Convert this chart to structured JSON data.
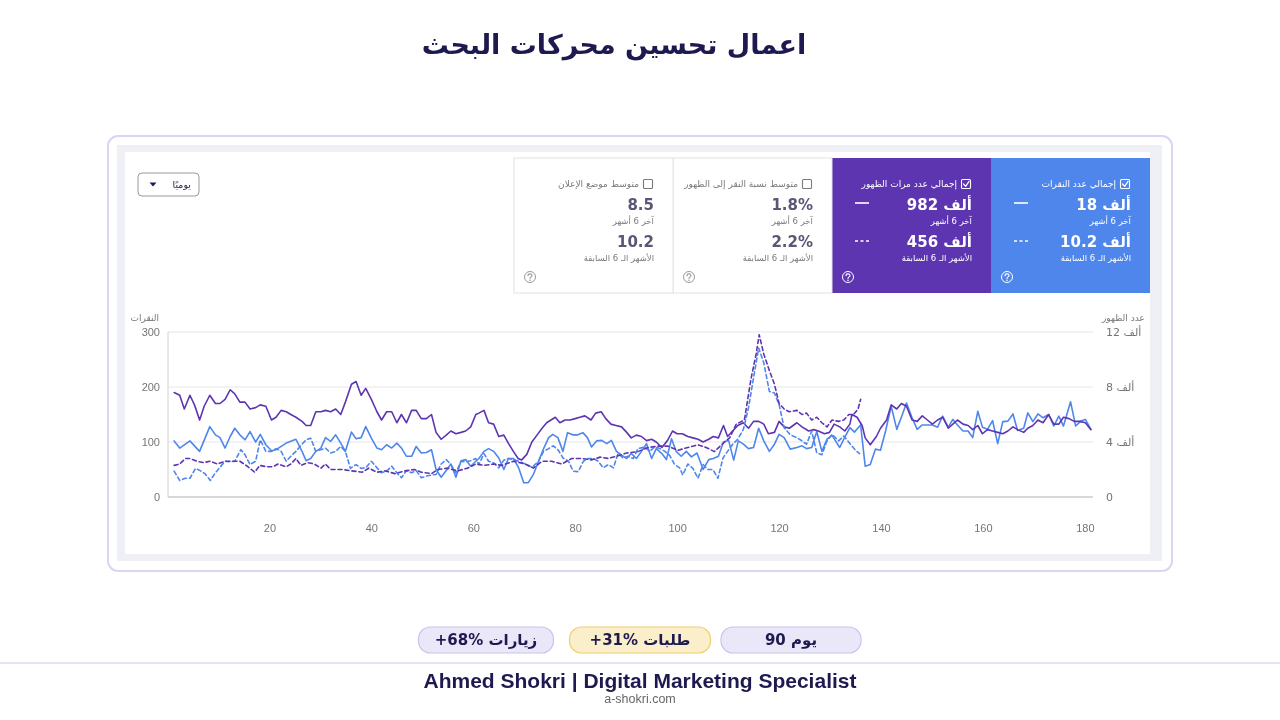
{
  "chart_data": {
    "type": "line",
    "title": "اعمال تحسين محركات البحث",
    "ylabel": "النقرات",
    "y2label": "عدد الظهور",
    "xlim": [
      0,
      181.5
    ],
    "xticks": [
      20,
      40,
      60,
      80,
      100,
      120,
      140,
      160,
      180
    ],
    "ylim": [
      0,
      300
    ],
    "yticks": [
      0,
      100,
      200,
      300
    ],
    "y2lim": [
      0,
      12
    ],
    "y2ticks": [
      0,
      {
        "value": 4,
        "label": "4 ألف"
      },
      {
        "value": 8,
        "label": "8 ألف"
      },
      {
        "value": 12,
        "label": "12 ألف"
      }
    ],
    "grid": "y",
    "series": [
      {
        "color": "#4f86ec",
        "line_style": "solid",
        "x": [
          1.2,
          2.3,
          4.3,
          6.2,
          8.2,
          9.3,
          10.2,
          11.2,
          12.2,
          13.1,
          14.1,
          15.1,
          16.1,
          17.2,
          18.1,
          19.2,
          20.3,
          21.2,
          23.2,
          25.1,
          26.3,
          27.1,
          28,
          29,
          30,
          30.9,
          31.9,
          32.9,
          33.9,
          34.8,
          36,
          36.9,
          37.9,
          38.8,
          39.9,
          41,
          41.9,
          42.9,
          43.9,
          44.9,
          45.8,
          46.8,
          47.8,
          48.7,
          49.7,
          50.7,
          51.7,
          52.6,
          53.6,
          54.6,
          55.5,
          56.5,
          57.5,
          58.4,
          59.4,
          60.4,
          61,
          62,
          62.9,
          63.9,
          64.9,
          65.9,
          66.8,
          67.8,
          68.8,
          69.8,
          70.7,
          71.7,
          72.7,
          73.7,
          74.7,
          75.5,
          76.5,
          77.5,
          78.4,
          79.4,
          80.4,
          81.4,
          82.3,
          83.1,
          84.1,
          85.1,
          86.1,
          87,
          88,
          89,
          90,
          90.9,
          91.9,
          92.9,
          93.9,
          94.9,
          95.8,
          96.9,
          97.8,
          98.8,
          99.7,
          100.7,
          101.7,
          102.7,
          103.8,
          105,
          106.1,
          107,
          108,
          109,
          110,
          111,
          111.9,
          112.9,
          113.9,
          114.9,
          115.9,
          116.9,
          118,
          119,
          119.9,
          120.9,
          122.1,
          123.4,
          124.4,
          125.3,
          126.3,
          127.3,
          128.3,
          129.3,
          130.3,
          131.8,
          132.8,
          133.8,
          134.7,
          135.9,
          136.8,
          137.8,
          138.8,
          139.8,
          140.8,
          141.9,
          143,
          143.9,
          144.9,
          146,
          147,
          148,
          149,
          150,
          151,
          152,
          153.1,
          154,
          154.9,
          156,
          157,
          157.9,
          158.9,
          159.8,
          160.8,
          161.8,
          162.8,
          163.8,
          164.8,
          165.8,
          166.7,
          167.9,
          168.7,
          169.7,
          170.7,
          171.7,
          172.8,
          173.8,
          174.8,
          175.7,
          177.1,
          178.1,
          179.1,
          180,
          181.1
        ],
        "values": [
          102,
          89,
          102,
          83,
          128,
          113,
          108,
          89,
          110,
          125,
          113,
          104,
          119,
          100,
          114,
          95,
          84,
          86,
          98,
          105,
          83,
          66,
          70,
          83,
          89,
          108,
          101,
          113,
          98,
          83,
          118,
          106,
          108,
          128,
          107,
          89,
          86,
          95,
          89,
          98,
          89,
          74,
          74,
          92,
          80,
          81,
          86,
          50,
          36,
          48,
          60,
          36,
          66,
          68,
          56,
          65,
          70,
          83,
          88,
          83,
          71,
          50,
          70,
          70,
          53,
          26,
          26,
          41,
          65,
          88,
          108,
          114,
          108,
          83,
          117,
          113,
          113,
          117,
          108,
          91,
          102,
          103,
          97,
          103,
          83,
          76,
          70,
          79,
          70,
          83,
          97,
          70,
          88,
          79,
          68,
          106,
          83,
          74,
          83,
          73,
          80,
          50,
          68,
          70,
          74,
          100,
          103,
          67,
          102,
          96,
          88,
          90,
          125,
          102,
          83,
          96,
          114,
          108,
          87,
          90,
          93,
          88,
          90,
          119,
          83,
          105,
          112,
          90,
          109,
          126,
          118,
          131,
          56,
          59,
          87,
          85,
          120,
          165,
          123,
          145,
          171,
          144,
          123,
          131,
          131,
          131,
          127,
          147,
          127,
          141,
          131,
          120,
          120,
          108,
          156,
          127,
          123,
          139,
          97,
          137,
          138,
          151,
          121,
          125,
          153,
          137,
          151,
          144,
          150,
          129,
          147,
          129,
          173,
          129,
          138,
          141,
          123
        ]
      },
      {
        "color": "#5e35b1",
        "line_style": "solid",
        "axis": "y2",
        "x": [
          1.2,
          2.3,
          3.2,
          4.3,
          5.2,
          6.2,
          7.1,
          8.2,
          9.3,
          10.2,
          11.2,
          12.2,
          13.1,
          14.1,
          15.1,
          16.1,
          17.2,
          18.1,
          19.2,
          20.3,
          21.2,
          22.2,
          23.2,
          24.1,
          25.1,
          26.3,
          27.1,
          28,
          29,
          30,
          30.9,
          31.9,
          32.9,
          33.9,
          34.8,
          36,
          36.9,
          37.9,
          38.8,
          39.9,
          41,
          41.9,
          42.9,
          43.9,
          44.9,
          45.8,
          46.8,
          47.8,
          48.7,
          49.7,
          50.7,
          51.7,
          52.6,
          53.6,
          54.6,
          55.5,
          56.5,
          57.5,
          58.4,
          59.4,
          60.4,
          61,
          62,
          62.9,
          63.9,
          64.9,
          65.9,
          66.8,
          67.8,
          68.7,
          69.4,
          70.4,
          71.4,
          72.4,
          73.4,
          74.3,
          76,
          76.9,
          77.9,
          78.9,
          79.9,
          80.8,
          81.8,
          83,
          83.9,
          85,
          85.9,
          86.9,
          87.9,
          89,
          90,
          90.9,
          91.9,
          92.9,
          93.9,
          94.9,
          95.8,
          96.9,
          98,
          99,
          99.9,
          100.9,
          102,
          103,
          104,
          105,
          106.1,
          107,
          108,
          109,
          109.8,
          110.8,
          111.8,
          112.9,
          113.9,
          114.9,
          115.9,
          116.9,
          117.8,
          119,
          119.9,
          120.9,
          121.9,
          123.4,
          124.4,
          125.7,
          126.7,
          127.6,
          128.8,
          129.8,
          130.7,
          131.8,
          132.8,
          133.8,
          134.2,
          135.2,
          136.2,
          136.8,
          137.8,
          139,
          139.8,
          141,
          141.9,
          143,
          143.9,
          144.9,
          146,
          147,
          148,
          149,
          150,
          151,
          152,
          153.1,
          154,
          154.9,
          156,
          157,
          157.9,
          158.9,
          159.8,
          160.8,
          161.8,
          162.8,
          163.8,
          164.8,
          165.8,
          166.7,
          167.9,
          168.7,
          169.7,
          170.7,
          171.7,
          172.8,
          173.8,
          174.8,
          175.7,
          176.8,
          177.8,
          178.9,
          180,
          181.1
        ],
        "values": [
          7.6,
          7.4,
          6.4,
          7.4,
          6.7,
          5.6,
          6.6,
          7.4,
          6.8,
          6.8,
          7.1,
          7.8,
          7.5,
          6.9,
          6.9,
          6.4,
          6.5,
          6.7,
          6.6,
          5.6,
          5.8,
          6.3,
          6.2,
          6.0,
          5.8,
          5.5,
          5.2,
          5.2,
          6.2,
          6.2,
          6.3,
          6.2,
          6.4,
          6.0,
          6.9,
          8.2,
          8.4,
          7.4,
          7.9,
          7.1,
          6.2,
          5.6,
          6.2,
          6.2,
          5.4,
          6.0,
          5.4,
          6.3,
          6.3,
          5.7,
          5.7,
          6.0,
          4.7,
          4.2,
          4.5,
          4.8,
          4.6,
          4.7,
          4.8,
          5.1,
          6.0,
          6.1,
          6.3,
          5.4,
          5.3,
          4.4,
          4.5,
          3.9,
          3.3,
          2.8,
          2.7,
          3.1,
          4.0,
          4.5,
          5.0,
          5.4,
          5.8,
          5.4,
          5.6,
          5.6,
          5.7,
          5.8,
          5.9,
          5.6,
          6.1,
          6.2,
          5.7,
          5.3,
          5.2,
          5.1,
          4.7,
          4.3,
          4.5,
          4.4,
          4.1,
          4.2,
          4.0,
          3.6,
          4.1,
          4.8,
          4.6,
          4.6,
          4.4,
          4.3,
          4.2,
          4.0,
          4.2,
          4.4,
          4.3,
          5.2,
          4.4,
          4.8,
          5.2,
          5.4,
          5.0,
          5.5,
          5.5,
          5.3,
          4.6,
          4.7,
          5.5,
          5.1,
          5.0,
          5.4,
          5.1,
          4.8,
          4.9,
          4.8,
          4.6,
          4.7,
          5.3,
          5.1,
          4.8,
          5.3,
          6.0,
          5.8,
          5.2,
          4.3,
          3.8,
          4.4,
          5.0,
          5.6,
          6.7,
          6.4,
          6.8,
          6.6,
          5.6,
          5.5,
          5.9,
          5.6,
          5.3,
          5.6,
          5.8,
          5.0,
          5.3,
          5.6,
          5.3,
          5.2,
          4.9,
          5.2,
          4.6,
          4.9,
          4.8,
          4.7,
          4.6,
          4.8,
          5.1,
          4.9,
          4.7,
          5.0,
          5.2,
          5.6,
          5.4,
          6.0,
          5.3,
          5.3,
          5.8,
          5.7,
          5.5,
          5.5,
          5.4,
          4.9
        ]
      },
      {
        "color": "#4f86ec",
        "line_style": "dashed",
        "x": [
          1.2,
          2.3,
          3.4,
          4.3,
          5.4,
          6.3,
          7.3,
          8.3,
          9.3,
          10.2,
          11.2,
          12.2,
          13.1,
          14.3,
          15.1,
          16.1,
          17.2,
          18.1,
          19.2,
          20.3,
          21.2,
          22.2,
          23.2,
          24.1,
          25.1,
          26.3,
          27.1,
          28,
          29,
          30,
          30.9,
          31.9,
          32.9,
          33.9,
          34.8,
          35.8,
          36.9,
          37.9,
          38.8,
          39.9,
          41,
          41.9,
          42.9,
          43.9,
          44.9,
          45.8,
          46.8,
          47.8,
          48.7,
          49.7,
          50.7,
          51.7,
          52.6,
          53.6,
          54.6,
          55.5,
          56.5,
          57.5,
          58.4,
          59.4,
          60.4,
          61,
          62,
          62.9,
          63.9,
          64.9,
          65.9,
          66.8,
          67.8,
          68.8,
          70.1,
          71.4,
          72.7,
          73.7,
          74.7,
          75.6,
          76.6,
          77.5,
          78.6,
          79.5,
          80.5,
          81.5,
          82.5,
          83.5,
          84.4,
          85.4,
          86.4,
          87.4,
          88.3,
          89.3,
          90.3,
          91.3,
          92.2,
          93.6,
          94.5,
          95.5,
          96.5,
          97.5,
          98.4,
          99.4,
          100.4,
          101,
          102,
          103,
          104,
          105,
          105.9,
          106.9,
          107.9,
          108.9,
          109.8,
          110.8,
          111.8,
          112.9,
          113.9,
          114.9,
          115.9,
          116.9,
          118,
          119,
          119.9,
          120.9,
          122.1,
          123.4,
          124.4,
          125.3,
          126.3,
          127.3,
          128.3,
          129.3,
          130.3,
          131.6,
          132.6,
          133.9,
          134.9,
          135.7
        ],
        "values": [
          47,
          30,
          34,
          34,
          52,
          48,
          42,
          30,
          44,
          54,
          65,
          64,
          65,
          86,
          77,
          59,
          65,
          104,
          83,
          83,
          88,
          83,
          65,
          74,
          83,
          96,
          104,
          107,
          83,
          86,
          89,
          80,
          83,
          92,
          83,
          52,
          59,
          52,
          53,
          65,
          53,
          44,
          47,
          56,
          44,
          35,
          48,
          44,
          48,
          35,
          38,
          40,
          41,
          60,
          68,
          59,
          44,
          65,
          64,
          66,
          70,
          59,
          79,
          65,
          62,
          53,
          67,
          70,
          68,
          65,
          60,
          54,
          65,
          83,
          88,
          93,
          85,
          71,
          65,
          47,
          46,
          65,
          70,
          70,
          65,
          53,
          59,
          53,
          79,
          71,
          74,
          70,
          88,
          91,
          83,
          91,
          88,
          83,
          76,
          59,
          53,
          40,
          60,
          52,
          34,
          59,
          50,
          50,
          34,
          71,
          83,
          96,
          105,
          123,
          162,
          217,
          271,
          244,
          192,
          189,
          168,
          126,
          113,
          108,
          102,
          96,
          120,
          80,
          77,
          102,
          114,
          102,
          111,
          96,
          85,
          79
        ]
      },
      {
        "color": "#5e35b1",
        "line_style": "dashed",
        "axis": "y2",
        "x": [
          1.2,
          2.3,
          3.4,
          4.3,
          5.7,
          7,
          8.3,
          9.7,
          11.2,
          12.5,
          14.1,
          15.7,
          17,
          18,
          19.3,
          20.6,
          21.6,
          23.2,
          24.1,
          25.1,
          26.1,
          27.4,
          28.7,
          30,
          30.9,
          31.9,
          34.2,
          36.1,
          38.1,
          39.4,
          41,
          42.6,
          44.5,
          46.5,
          48.4,
          49.7,
          51.7,
          52.9,
          54.9,
          56.8,
          58.8,
          60.4,
          62,
          63.9,
          65.5,
          67.8,
          70.1,
          71.7,
          73.4,
          75.3,
          77.3,
          79.2,
          81.2,
          83.1,
          84.8,
          86.4,
          88.3,
          90,
          92.2,
          94.2,
          96.2,
          98.1,
          100.1,
          102,
          104,
          105.6,
          107.2,
          108.9,
          110.2,
          111.5,
          113.1,
          114.4,
          115.4,
          116,
          116.9,
          118,
          119,
          119.9,
          120.9,
          121.9,
          123.4,
          124.4,
          125.3,
          126.3,
          127.3,
          128.3,
          129.3,
          130.3,
          131.6,
          132.6,
          133.6,
          134.5,
          135.4,
          135.9
        ],
        "values": [
          2.3,
          2.4,
          2.8,
          2.8,
          2.6,
          2.5,
          2.6,
          2.4,
          2.6,
          2.6,
          2.6,
          2.2,
          1.8,
          2.3,
          2.2,
          2.2,
          2.4,
          2.2,
          2.4,
          2.8,
          2.3,
          2.5,
          2.4,
          2.1,
          2.4,
          2.0,
          2.0,
          1.9,
          1.8,
          2.1,
          1.8,
          1.9,
          1.7,
          1.9,
          2.0,
          1.8,
          1.7,
          2.0,
          2.1,
          1.9,
          2.1,
          2.4,
          2.3,
          2.4,
          2.3,
          2.6,
          2.4,
          2.1,
          2.6,
          2.6,
          2.4,
          2.8,
          2.8,
          2.7,
          2.9,
          2.8,
          3.0,
          3.2,
          3.3,
          3.6,
          3.7,
          3.7,
          3.4,
          3.6,
          3.8,
          3.6,
          3.3,
          3.9,
          4.3,
          5.3,
          5.6,
          8.6,
          10.4,
          11.8,
          10.4,
          9.2,
          8.2,
          6.8,
          6.4,
          6.2,
          6.3,
          6.0,
          6.1,
          5.6,
          5.8,
          5.4,
          5.1,
          5.6,
          5.5,
          5.6,
          6.0,
          6.0,
          6.4,
          7.1
        ]
      }
    ],
    "annotations": [
      "إجمالي عدد النقرات",
      "18 ألف",
      "آخر 6 أشهر",
      "10.2 ألف",
      "الأشهر الـ 6 السابقة",
      "إجمالي عدد مرات الظهور",
      "982 ألف",
      "آخر 6 أشهر",
      "456 ألف",
      "الأشهر الـ 6 السابقة",
      "متوسط نسبة النقر إلى الظهور",
      "1.8%",
      "آخر 6 أشهر",
      "2.2%",
      "الأشهر الـ 6 السابقة",
      "متوسط موضع الإعلان",
      "8.5",
      "آخر 6 أشهر",
      "10.2",
      "الأشهر الـ 6 السابقة",
      "يوميًا",
      "90 يوم",
      "+31% طلبات",
      "+68% زيارات",
      "Ahmed Shokri | Digital Marketing Specialist",
      "a-shokri.com"
    ]
  }
}
